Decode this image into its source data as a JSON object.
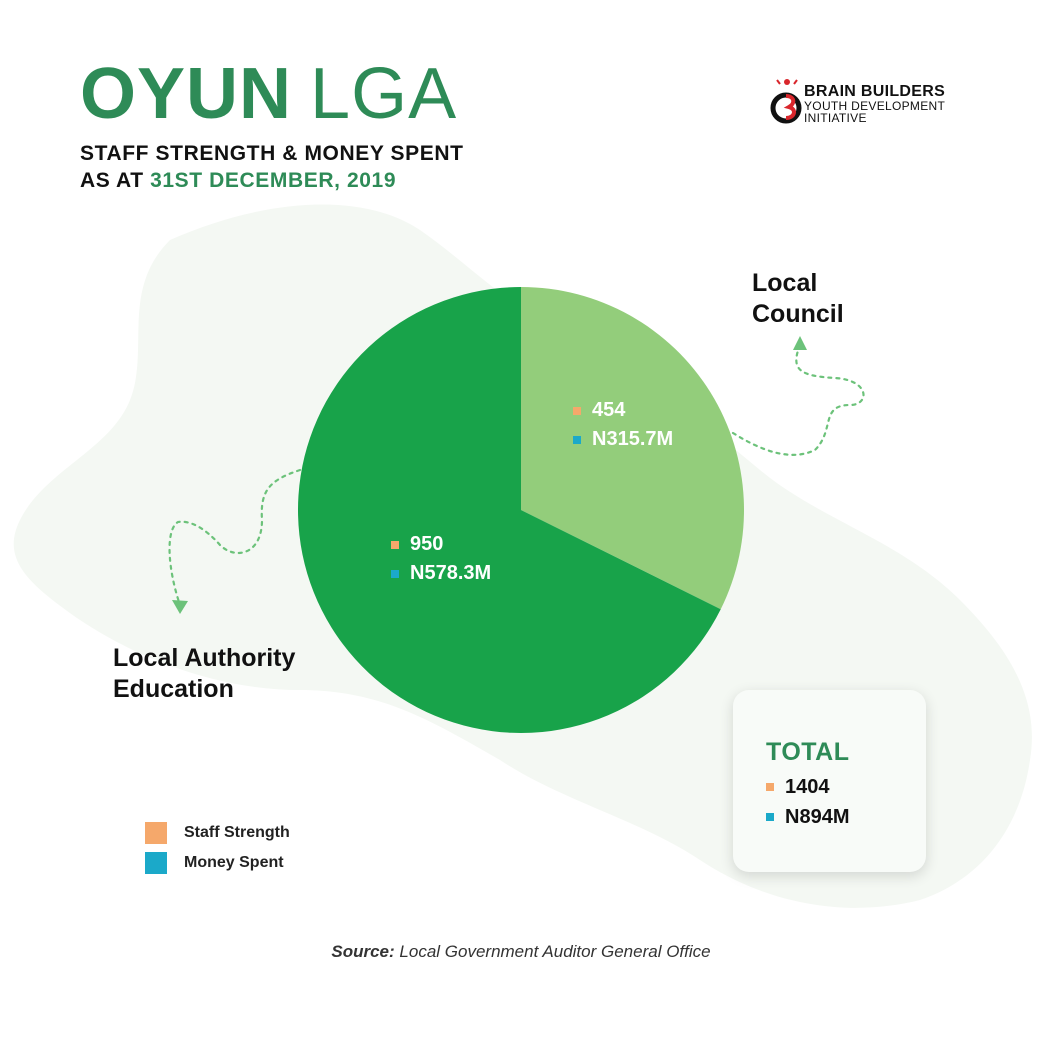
{
  "header": {
    "title_bold": "OYUN",
    "title_light": "LGA",
    "subtitle_line1": "STAFF STRENGTH & MONEY SPENT",
    "subtitle_line2_prefix": "AS AT",
    "subtitle_line2_date": "31ST DECEMBER, 2019"
  },
  "logo": {
    "name": "BRAIN BUILDERS",
    "sub_line1": "YOUTH DEVELOPMENT",
    "sub_line2": "INITIATIVE",
    "icon": "brain-builders-logo-icon"
  },
  "chart_data": {
    "type": "pie",
    "title": "STAFF STRENGTH & MONEY SPENT AS AT 31ST DECEMBER, 2019",
    "slices": [
      {
        "label_line1": "Local",
        "label_line2": "Council",
        "staff_strength": 454,
        "staff_strength_text": "454",
        "money_spent_millions": 315.7,
        "money_spent_text": "N315.7M",
        "color": "#93cd7b"
      },
      {
        "label_line1": "Local Authority",
        "label_line2": "Education",
        "staff_strength": 950,
        "staff_strength_text": "950",
        "money_spent_millions": 578.3,
        "money_spent_text": "N578.3M",
        "color": "#18a34a"
      }
    ],
    "legend": [
      {
        "label": "Staff Strength",
        "color": "#f5a86b"
      },
      {
        "label": "Money Spent",
        "color": "#1ba9c9"
      }
    ],
    "total": {
      "label": "TOTAL",
      "staff_strength_text": "1404",
      "money_spent_text": "N894M"
    }
  },
  "source": {
    "label": "Source:",
    "text": "Local Government Auditor General Office"
  },
  "colors": {
    "brand_green": "#2e8b57",
    "staff_marker": "#f5a86b",
    "money_marker": "#1ba9c9",
    "map_tint": "#f4f8f3"
  }
}
